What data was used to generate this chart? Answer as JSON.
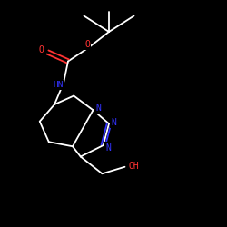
{
  "background_color": "#000000",
  "bond_color": "#ffffff",
  "atom_colors": {
    "O": "#ff3333",
    "N": "#3333ff",
    "C": "#ffffff",
    "H": "#ffffff"
  },
  "figsize": [
    2.5,
    2.5
  ],
  "dpi": 100,
  "lw": 1.3
}
